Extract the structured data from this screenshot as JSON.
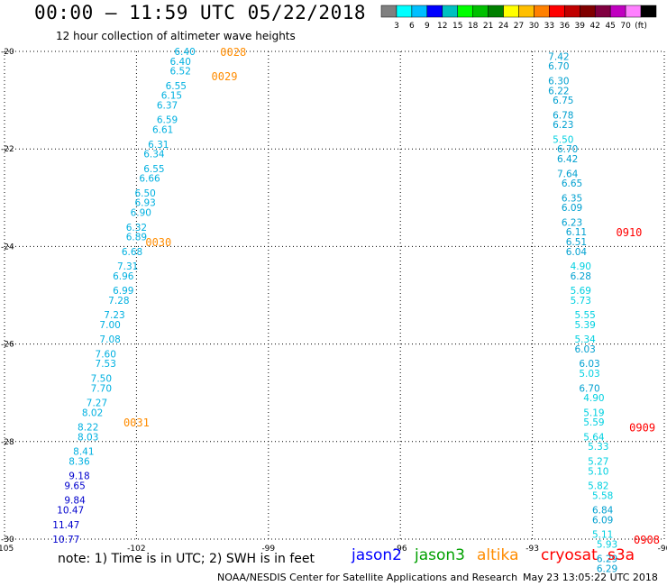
{
  "header": {
    "title": "00:00 – 11:59 UTC 05/22/2018",
    "subtitle": "12 hour collection of altimeter wave heights"
  },
  "colorbar": {
    "bins": [
      "#808080",
      "#00ffff",
      "#00bfff",
      "#0000ff",
      "#00c0c0",
      "#00ff00",
      "#00c000",
      "#008000",
      "#ffff00",
      "#ffbf00",
      "#ff8000",
      "#ff0000",
      "#c00000",
      "#800000",
      "#800040",
      "#c000c0",
      "#ff80ff",
      "#000000"
    ],
    "ticks": [
      "3",
      "6",
      "9",
      "12",
      "15",
      "18",
      "21",
      "24",
      "27",
      "30",
      "33",
      "36",
      "39",
      "42",
      "45",
      "70",
      "(ft)"
    ]
  },
  "footer": {
    "note": "note: 1) Time is in UTC; 2) SWH is in feet",
    "satellites": [
      {
        "name": "jason2",
        "color": "#0000ff"
      },
      {
        "name": "jason3",
        "color": "#00a000"
      },
      {
        "name": "altika",
        "color": "#ff8c00"
      },
      {
        "name": "cryosat",
        "color": "#ff0000"
      },
      {
        "name": "s3a",
        "color": "#ff0000"
      }
    ],
    "credit": "NOAA/NESDIS Center for Satellite Applications and Research",
    "generated": "May 23 13:05:22 UTC 2018"
  },
  "chart_data": {
    "type": "scatter",
    "xlim": [
      -105,
      -90
    ],
    "ylim": [
      -30,
      -20
    ],
    "x_ticks": [
      -105,
      -102,
      -99,
      -96,
      -93,
      -90
    ],
    "y_ticks": [
      -20,
      -22,
      -24,
      -26,
      -28,
      -30
    ],
    "grid": true,
    "tracks": [
      {
        "name": "west-track",
        "points": [
          [
            -100.9,
            -20.0,
            "6.40"
          ],
          [
            -101.0,
            -20.2,
            "6.40"
          ],
          [
            -101.0,
            -20.4,
            "6.52"
          ],
          [
            -101.1,
            -20.7,
            "6.55"
          ],
          [
            -101.2,
            -20.9,
            "6.15"
          ],
          [
            -101.3,
            -21.1,
            "6.37"
          ],
          [
            -101.3,
            -21.4,
            "6.59"
          ],
          [
            -101.4,
            -21.6,
            "6.61"
          ],
          [
            -101.5,
            -21.9,
            "6.31"
          ],
          [
            -101.6,
            -22.1,
            "6.34"
          ],
          [
            -101.6,
            -22.4,
            "6.55"
          ],
          [
            -101.7,
            -22.6,
            "6.66"
          ],
          [
            -101.8,
            -22.9,
            "6.50"
          ],
          [
            -101.8,
            -23.1,
            "6.93"
          ],
          [
            -101.9,
            -23.3,
            "6.90"
          ],
          [
            -102.0,
            -23.6,
            "6.32"
          ],
          [
            -102.0,
            -23.8,
            "6.89"
          ],
          [
            -102.1,
            -24.1,
            "6.68"
          ],
          [
            -102.2,
            -24.4,
            "7.31"
          ],
          [
            -102.3,
            -24.6,
            "6.96"
          ],
          [
            -102.3,
            -24.9,
            "6.99"
          ],
          [
            -102.4,
            -25.1,
            "7.28"
          ],
          [
            -102.5,
            -25.4,
            "7.23"
          ],
          [
            -102.6,
            -25.6,
            "7.00"
          ],
          [
            -102.6,
            -25.9,
            "7.08"
          ],
          [
            -102.7,
            -26.2,
            "7.60"
          ],
          [
            -102.7,
            -26.4,
            "7.53"
          ],
          [
            -102.8,
            -26.7,
            "7.50"
          ],
          [
            -102.8,
            -26.9,
            "7.70"
          ],
          [
            -102.9,
            -27.2,
            "7.27"
          ],
          [
            -103.0,
            -27.4,
            "8.02"
          ],
          [
            -103.1,
            -27.7,
            "8.22"
          ],
          [
            -103.1,
            -27.9,
            "8.03"
          ],
          [
            -103.2,
            -28.2,
            "8.41"
          ],
          [
            -103.3,
            -28.4,
            "8.36"
          ],
          [
            -103.3,
            -28.7,
            "9.18"
          ],
          [
            -103.4,
            -28.9,
            "9.65"
          ],
          [
            -103.4,
            -29.2,
            "9.84"
          ],
          [
            -103.5,
            -29.4,
            "10.47"
          ],
          [
            -103.6,
            -29.7,
            "11.47"
          ],
          [
            -103.6,
            -30.0,
            "10.77"
          ]
        ],
        "time_labels": [
          [
            -99.8,
            -20.0,
            "0028"
          ],
          [
            -100.0,
            -20.5,
            "0029"
          ],
          [
            -101.5,
            -23.9,
            "0030"
          ],
          [
            -102.0,
            -27.6,
            "0031"
          ]
        ]
      },
      {
        "name": "east-track",
        "points": [
          [
            -92.4,
            -20.1,
            "7.42"
          ],
          [
            -92.4,
            -20.3,
            "6.70"
          ],
          [
            -92.4,
            -20.6,
            "6.30"
          ],
          [
            -92.4,
            -20.8,
            "6.22"
          ],
          [
            -92.3,
            -21.0,
            "6.75"
          ],
          [
            -92.3,
            -21.3,
            "6.78"
          ],
          [
            -92.3,
            -21.5,
            "6.23"
          ],
          [
            -92.3,
            -21.8,
            "5.50"
          ],
          [
            -92.2,
            -22.0,
            "6.70"
          ],
          [
            -92.2,
            -22.2,
            "6.42"
          ],
          [
            -92.2,
            -22.5,
            "7.64"
          ],
          [
            -92.1,
            -22.7,
            "6.65"
          ],
          [
            -92.1,
            -23.0,
            "6.35"
          ],
          [
            -92.1,
            -23.2,
            "6.09"
          ],
          [
            -92.1,
            -23.5,
            "6.23"
          ],
          [
            -92.0,
            -23.7,
            "6.11"
          ],
          [
            -92.0,
            -23.9,
            "6.51"
          ],
          [
            -92.0,
            -24.1,
            "6.04"
          ],
          [
            -91.9,
            -24.4,
            "4.90"
          ],
          [
            -91.9,
            -24.6,
            "6.28"
          ],
          [
            -91.9,
            -24.9,
            "5.69"
          ],
          [
            -91.9,
            -25.1,
            "5.73"
          ],
          [
            -91.8,
            -25.4,
            "5.55"
          ],
          [
            -91.8,
            -25.6,
            "5.39"
          ],
          [
            -91.8,
            -25.9,
            "5.34"
          ],
          [
            -91.8,
            -26.1,
            "6.03"
          ],
          [
            -91.7,
            -26.4,
            "6.03"
          ],
          [
            -91.7,
            -26.6,
            "5.03"
          ],
          [
            -91.7,
            -26.9,
            "6.70"
          ],
          [
            -91.6,
            -27.1,
            "4.90"
          ],
          [
            -91.6,
            -27.4,
            "5.19"
          ],
          [
            -91.6,
            -27.6,
            "5.59"
          ],
          [
            -91.6,
            -27.9,
            "5.64"
          ],
          [
            -91.5,
            -28.1,
            "5.33"
          ],
          [
            -91.5,
            -28.4,
            "5.27"
          ],
          [
            -91.5,
            -28.6,
            "5.10"
          ],
          [
            -91.5,
            -28.9,
            "5.82"
          ],
          [
            -91.4,
            -29.1,
            "5.58"
          ],
          [
            -91.4,
            -29.4,
            "6.84"
          ],
          [
            -91.4,
            -29.6,
            "6.09"
          ],
          [
            -91.4,
            -29.9,
            "5.11"
          ],
          [
            -91.3,
            -30.1,
            "5.93"
          ],
          [
            -91.3,
            -30.4,
            "6.29"
          ],
          [
            -91.3,
            -30.6,
            "6.29"
          ]
        ],
        "time_labels": [
          [
            -90.8,
            -23.7,
            "0910"
          ],
          [
            -90.5,
            -27.7,
            "0909"
          ],
          [
            -90.4,
            -30.0,
            "0908"
          ]
        ]
      }
    ]
  }
}
